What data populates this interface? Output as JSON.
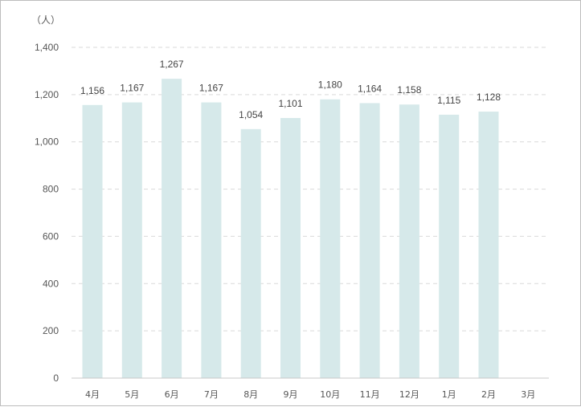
{
  "chart_data": {
    "type": "bar",
    "unit_label": "（人）",
    "categories": [
      "4月",
      "5月",
      "6月",
      "7月",
      "8月",
      "9月",
      "10月",
      "11月",
      "12月",
      "1月",
      "2月",
      "3月"
    ],
    "values": [
      1156,
      1167,
      1267,
      1167,
      1054,
      1101,
      1180,
      1164,
      1158,
      1115,
      1128,
      null
    ],
    "data_labels": [
      "1,156",
      "1,167",
      "1,267",
      "1,167",
      "1,054",
      "1,101",
      "1,180",
      "1,164",
      "1,158",
      "1,115",
      "1,128",
      ""
    ],
    "y_ticks": [
      0,
      200,
      400,
      600,
      800,
      1000,
      1200,
      1400
    ],
    "y_tick_labels": [
      "0",
      "200",
      "400",
      "600",
      "800",
      "1,000",
      "1,200",
      "1,400"
    ],
    "ylim": [
      0,
      1400
    ],
    "grid": true,
    "bar_color": "#d6e9ea",
    "grid_color": "#d9d9d9"
  }
}
